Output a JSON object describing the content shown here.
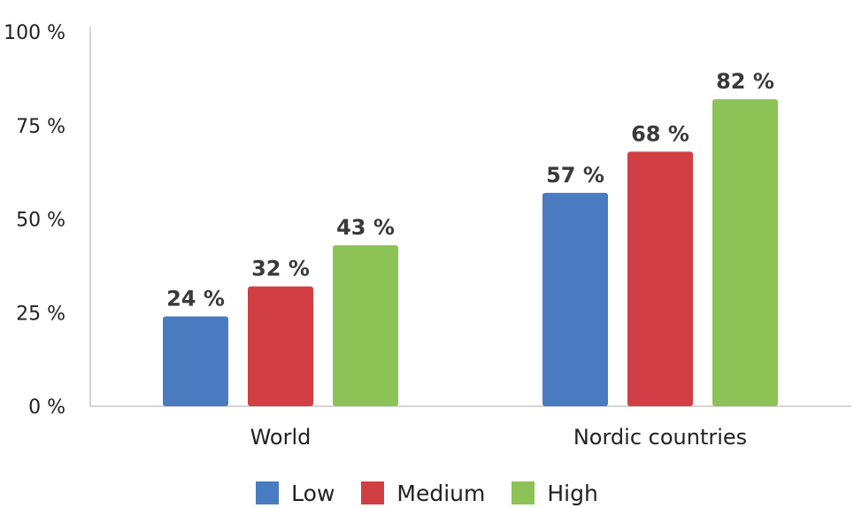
{
  "chart_data": {
    "type": "bar",
    "categories": [
      "World",
      "Nordic countries"
    ],
    "series": [
      {
        "name": "Low",
        "values": [
          24,
          57
        ],
        "labels": [
          "24 %",
          "57 %"
        ],
        "color": "#4a7bc0"
      },
      {
        "name": "Medium",
        "values": [
          32,
          68
        ],
        "labels": [
          "32 %",
          "68 %"
        ],
        "color": "#d13f45"
      },
      {
        "name": "High",
        "values": [
          43,
          82
        ],
        "labels": [
          "43 %",
          "82 %"
        ],
        "color": "#8dc356"
      }
    ],
    "y_ticks": [
      "0 %",
      "25 %",
      "50 %",
      "75 %",
      "100 %"
    ],
    "ylim": [
      0,
      100
    ],
    "title": "",
    "xlabel": "",
    "ylabel": "",
    "grid": false,
    "legend_position": "bottom"
  }
}
